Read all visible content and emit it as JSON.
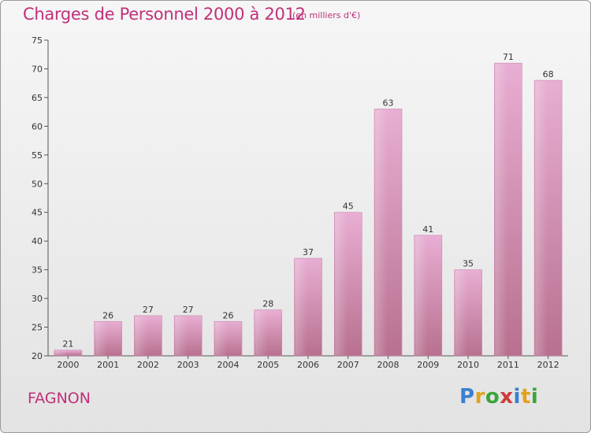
{
  "header": {
    "title": "Charges de Personnel 2000 à 2012",
    "subtitle": "(en milliers d'€)"
  },
  "footer": {
    "commune": "FAGNON",
    "logo_letters": [
      "P",
      "r",
      "o",
      "x",
      "i",
      "t",
      "i"
    ],
    "logo_colors": [
      "#3a7fd0",
      "#e2a21a",
      "#3aa53a",
      "#d03a3a",
      "#3a7fd0",
      "#e2a21a",
      "#3aa53a"
    ]
  },
  "chart_data": {
    "type": "bar",
    "categories": [
      "2000",
      "2001",
      "2002",
      "2003",
      "2004",
      "2005",
      "2006",
      "2007",
      "2008",
      "2009",
      "2010",
      "2011",
      "2012"
    ],
    "values": [
      21,
      26,
      27,
      27,
      26,
      28,
      37,
      45,
      63,
      41,
      35,
      71,
      68
    ],
    "ylim": [
      20,
      75
    ],
    "yticks": [
      20,
      25,
      30,
      35,
      40,
      45,
      50,
      55,
      60,
      65,
      70,
      75
    ],
    "bar_color": "#dc9ec6",
    "grid": false
  }
}
